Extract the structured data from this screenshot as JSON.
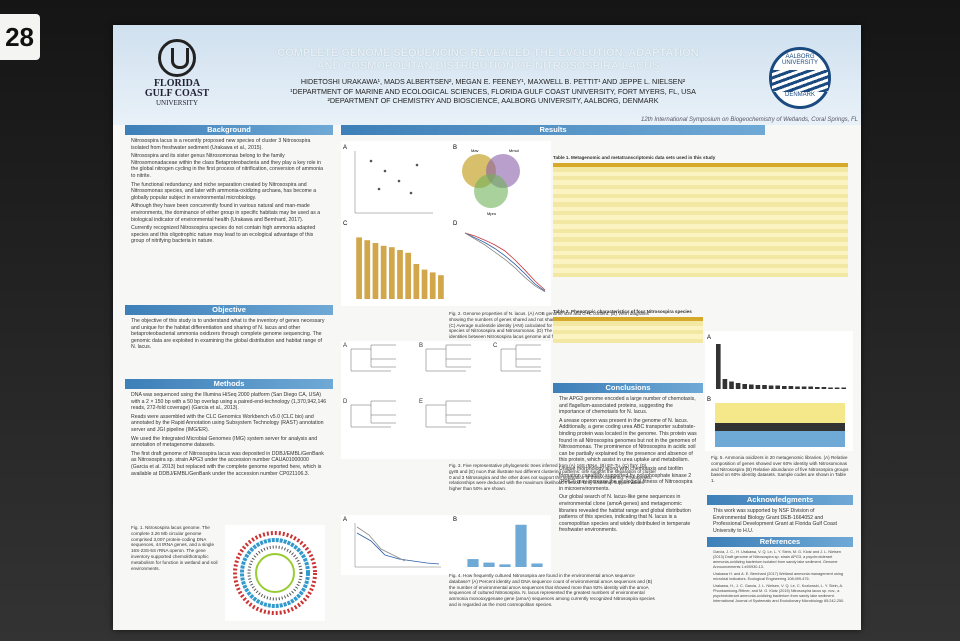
{
  "board_number": "28",
  "header": {
    "title_line1": "COMPLETE GENOME SEQUENCING REVEALED THE EVOLUTION, ADAPTATION",
    "title_line2": "AND COSMOPOLITAN DISTRIBUTION OF NITROSOSPIRA LACUS",
    "authors": "HIDETOSHI URAKAWA¹, MADS ALBERTSEN², MEGAN E. FEENEY¹, MAXWELL B. PETTIT¹ AND JEPPE L. NIELSEN²",
    "affil1": "¹DEPARTMENT OF MARINE AND ECOLOGICAL SCIENCES, FLORIDA GULF COAST UNIVERSITY, FORT MYERS, FL, USA",
    "affil2": "²DEPARTMENT OF CHEMISTRY AND BIOSCIENCE, AALBORG UNIVERSITY, AALBORG, DENMARK",
    "conference": "12th International Symposium on Biogeochemistry of Wetlands, Coral Springs, FL",
    "logo_left_name1": "FLORIDA",
    "logo_left_name2": "GULF COAST",
    "logo_left_name3": "UNIVERSITY",
    "logo_right_top": "AALBORG UNIVERSITY",
    "logo_right_bottom": "DENMARK"
  },
  "sections": {
    "background": "Background",
    "objective": "Objective",
    "methods": "Methods",
    "results": "Results",
    "conclusions": "Conclusions",
    "acknowledgments": "Acknowledgments",
    "references": "References"
  },
  "background_items": [
    "Nitrosospira lacus is a recently proposed new species of cluster 3 Nitrosospira isolated from freshwater sediment (Urakawa et al., 2015).",
    "Nitrosospira and its sister genus Nitrosomonas belong to the family Nitrosomonadaceae within the class Betaproteobacteria and they play a key role in the global nitrogen cycling in the first process of nitrification, conversion of ammonia to nitrite.",
    "The functional redundancy and niche separation created by Nitrosospira and Nitrosomonas species, and later with ammonia-oxidizing archaea, has become a globally popular subject in environmental microbiology.",
    "Although they have been concurrently found in various natural and man-made environments, the dominance of either group in specific habitats may be used as a biological indicator of environmental health (Urakawa and Bernhard, 2017).",
    "Currently recognized Nitrosospira species do not contain high ammonia adapted species and this oligotrophic nature may lead to an ecological advantage of this group of nitrifying bacteria in nature."
  ],
  "objective_text": "The objective of this study is to understand what is the inventory of genes necessary and unique for the habitat differentiation and sharing of N. lacus and other betaproteobacterial ammonia oxidizers through complete genome sequencing. The genomic data are exploited in examining the global distribution and habitat range of N. lacus.",
  "methods_items": [
    "DNA was sequenced using the Illumina HiSeq 2000 platform (San Diego CA, USA) with a 2 × 150 bp with a 50 bp overlap using a paired-end-technology (1,370,942,146 reads, 272-fold coverage) (Garcia et al., 2013).",
    "Reads were assembled with the CLC Genomics Workbench v5.0 (CLC bio) and annotated by the Rapid Annotation using Subsystem Technology (RAST) annotation server and JGI pipeline (IMG/ER).",
    "We used the Integrated Microbial Genomes (IMG) system server for analysis and annotation of metagenome datasets.",
    "The first draft genome of Nitrosospira lacus was deposited in DDBJ/EMBL/GenBank as Nitrosospira sp. strain APG3 under the accession number CAUA01000000 (Garcia et al. 2013) but replaced with the complete genome reported here, which is available at DDBJ/EMBL/GenBank under the accession number CP021106.3."
  ],
  "fig1_caption": "Fig. 1. Nitrosospira lacus genome. The complete 3.26 Mb circular genome comprised 3,007 protein-coding DNA sequences, 44 tRNA genes, and a single 16S-23S-5S rRNA operon. The gene inventory supported chemolithotrophic metabolism for function in wetland and soil environments.",
  "fig2_caption": "Fig. 2. Genome properties of N. lacus. (A) AOB genome size and G+C content. (B) Venn diagrams showing the numbers of genes shared and not shared among three complete Nitrosospira genomes. (C) Average nucleotide identity (ANI) calculated for the genomes of Nitrosospira lacus and other species of Nitrosospira and Nitrosomonas. (D) The numbers of sharing genes and their percent identities between Nitrosospira lacus genome and five other betaproteobacterial ammonia oxidizers.",
  "fig3_caption": "Fig. 3. Five representative phylogenetic trees inferred from (A) 16S rRNA, (B) EF-Tu, (C) ftsY, (D) gyrB and (E) nuoA that illustrate two different clustering patterns: one support the separation of cluster 0 and 3 Nitrosospira and the other does not support the separation of these clustering. Phylogenetic relationships were deduced with the maximum likelihood method. Only bootstrap support values higher than 50% are shown.",
  "fig4_caption": "Fig. 4. How frequently cultured Nitrosospira are found in the environmental amoA sequence database? (A) Percent identity and DNA sequence count of environmental amoA sequences and (B) the number of environmental amoA sequences that showed more than 92% identity with the amoA sequences of cultured Nitrosospira. N. lacus represented the greatest numbers of environmental ammonia monooxygenase gene (amoA) sequences among currently recognized Nitrosospira species and is regarded as the most cosmopolitan species.",
  "fig5_caption": "Fig. 5. Ammonia oxidizers in 20 metagenomic libraries. (A) Relative composition of genes showed over 60% identity with Nitrosomonas and Nitrosospira (B) Relative abundance of five Nitrosospira groups based on 60% identity datasets. Sample codes are shown in Table 1.",
  "table1_title": "Table 1. Metagenomic and metatranscriptomic data sets used in this study",
  "table2_title": "Table 2. Phenotypic characteristics of four Nitrosospira species",
  "venn_labels": [
    "Mav",
    "Mmul",
    "Mpro"
  ],
  "conclusions_items": [
    "The APG3 genome encoded a large number of chemotaxis, and flagellum-associated proteins, suggesting the importance of chemotaxis for N. lacus.",
    "A urease operon was present in the genome of N. lacus. Additionally, a gene coding urea ABC transporter substrate-binding protein was located in the genome. This protein was found in all Nitrosospira genomes but not in the genomes of Nitrosomonas. The prominence of Nitrosospira in acidic soil can be partially explained by the presence and absence of this protein, which assist in urea uptake and metabolism.",
    "Unique morphology along with chemotaxis and biofilm formation capability supported by polyphosphate kinase 2 (PPK2) may increase the ecological fitness of Nitrosospira in microenvironments.",
    "Our global search of N. lacus-like gene sequences in environmental clone (amoA genes) and metagenomic libraries revealed the habitat range and global distribution patterns of this species, indicating that N. lacus is a cosmopolitan species and widely distributed in temperate freshwater environments."
  ],
  "acknowledgments_text": "This work was supported by NSF Division of Environmental Biology Grant DEB-1664052 and Professional Development Grant at Florida Gulf Coast University to H.U.",
  "references_items": [
    "Garcia, J. C., H. Urakawa, V. Q. Le, L. Y. Stein, M. G. Klotz and J. L. Nielsen (2013) Draft genome of Nitrosospira sp. strain APG3, a psychrotolerant ammonia-oxidizing bacterium isolated from sandy lake sediment. Genome Announcements 1:e00930-13.",
    "Urakawa H. and A. E. Bernhard (2017) Wetland ammonia management using microbial indicators. Ecological Engineering 108:499-476.",
    "Urakawa, H., J. C. Garcia, J. L. Nielsen, V. Q. Le, C. Kozlowski, L. Y. Stein, A. Phonkamkong-Rittner, and M. G. Klotz (2015) Nitrosospira lacus sp. nov., a psychrotolerant ammonia-oxidizing bacterium from sandy lake sediment. International Journal of Systematic and Evolutionary Microbiology 65:242-250."
  ],
  "chart_data": [
    {
      "type": "bar",
      "panel": "Fig.2C",
      "categories": [
        "",
        "",
        "",
        "",
        "",
        "",
        "",
        "",
        "",
        "",
        ""
      ],
      "values": [
        88,
        84,
        80,
        76,
        74,
        70,
        66,
        50,
        42,
        38,
        34
      ],
      "color": "#d2a64a"
    },
    {
      "type": "line",
      "panel": "Fig.2D",
      "series": [
        {
          "values": [
            100,
            95,
            88,
            80,
            70,
            55,
            38,
            20,
            5
          ]
        },
        {
          "values": [
            100,
            92,
            84,
            74,
            62,
            48,
            32,
            15,
            3
          ]
        },
        {
          "values": [
            100,
            90,
            80,
            68,
            56,
            42,
            26,
            12,
            2
          ]
        }
      ]
    },
    {
      "type": "bar",
      "panel": "Fig.4B",
      "categories": [
        "",
        "",
        "",
        "",
        ""
      ],
      "values": [
        18,
        10,
        6,
        96,
        8
      ],
      "color": "#6fa9d6"
    },
    {
      "type": "bar",
      "panel": "Fig.5A",
      "categories": [
        "",
        "",
        "",
        "",
        "",
        "",
        "",
        "",
        "",
        "",
        "",
        "",
        "",
        "",
        "",
        "",
        "",
        "",
        "",
        ""
      ],
      "values": [
        90,
        20,
        15,
        12,
        10,
        9,
        8,
        8,
        7,
        7,
        6,
        6,
        5,
        5,
        5,
        4,
        4,
        3,
        3,
        3
      ],
      "color": "#333333"
    }
  ]
}
